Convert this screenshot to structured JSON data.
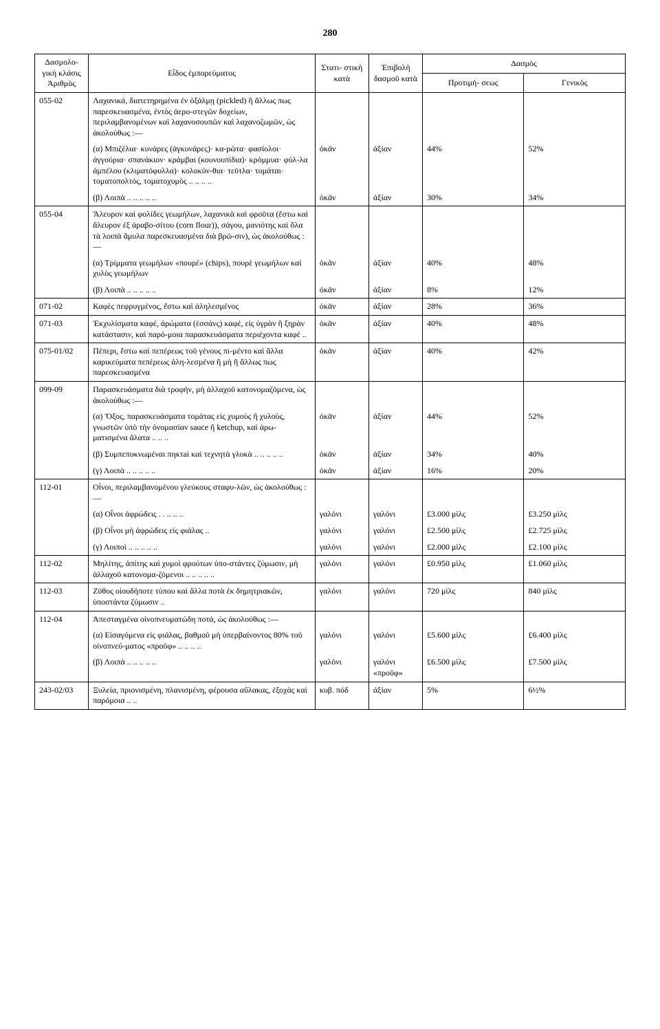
{
  "page_number": "280",
  "headers": {
    "code": "Δασμολο-\nγική\nκλάσις\nἈριθμὸς",
    "desc": "Εἶδος ἐμπορεύματος",
    "stat": "Στατι-\nστικὴ\nκατὰ",
    "epi": "Ἐπιβολὴ\nδασμοῦ\nκατὰ",
    "dasmos": "Δασμὸς",
    "pref": "Προτιμή-\nσεως",
    "gen": "Γενικὸς"
  },
  "rows": [
    {
      "code": "055-02",
      "desc_main": "Λαχανικά, διατετηρημένα ἐν ὀξάλμῃ (pickled) ἢ ἄλλως πως παρεσκευασμένα, ἐντὸς ἀερο-στεγῶν δοχείων, περιλαμβανομένων καὶ λαχανοσουπῶν καὶ λαχανοζωμῶν, ὡς ἀκολούθως :—",
      "sub": [
        {
          "label": "(α) Μπιζέλια· κυνάρες (ἀγκυνάρες)· κα-ρῶτα· φασίολοι· ἀγγούρια· σπανάκιον· κράμβαι (κουνουπίδια)· κρόμμυα· φύλ-λα ἀμπέλου (κλιματόφυλλα)· κολοκύν-θια· τεῦτλα· τομάται· τοματοπολτός, τοματοχυμὸς    ..    ..    ..    ..",
          "stat": "ὀκᾶν",
          "epi": "ἀξίαν",
          "pref": "44%",
          "gen": "52%"
        },
        {
          "label": "(β) Λοιπὰ    ..    ..    ..    ..    ..",
          "stat": "ὀκᾶν",
          "epi": "ἀξίαν",
          "pref": "30%",
          "gen": "34%"
        }
      ]
    },
    {
      "code": "055-04",
      "desc_main": "Ἄλευρον καὶ φολίδες γεωμήλων, λαχανικὰ καὶ φροῦτα (ἔστω καὶ ἄλευρον ἐξ ἀραβο-σίτου (corn flour)), σάγου, μανιότης καὶ ὅλα τὰ λοιπὰ ἄμυλα παρεσκευασμένα διὰ βρῶ-σιν), ὡς ἀκολούθως :—",
      "sub": [
        {
          "label": "(α) Τρίμματα γεωμήλων «πουρέ» (chips), πουρὲ γεωμήλων καὶ χυλὸς γεωμήλων",
          "stat": "ὀκᾶν",
          "epi": "ἀξίαν",
          "pref": "40%",
          "gen": "48%"
        },
        {
          "label": "(β) Λοιπὰ    ..    ..    ..    ..    ..",
          "stat": "ὀκᾶν",
          "epi": "ἀξίαν",
          "pref": "8%",
          "gen": "12%"
        }
      ]
    },
    {
      "code": "071-02",
      "desc_main": "Καφὲς πεφρυγμένος, ἔστω καὶ ἀληλεσμένος",
      "sub": [
        {
          "label": "",
          "stat": "ὀκᾶν",
          "epi": "ἀξίαν",
          "pref": "28%",
          "gen": "36%"
        }
      ],
      "single": true
    },
    {
      "code": "071-03",
      "desc_main": "Ἐκχυλίσματα καφέ, ἀρώματα (ἐσσάνς) καφέ, εἰς ὑγρὰν ἢ ξηρὰν κατάστασιν, καὶ παρό-μοια παρασκευάσματα περιέχοντα καφέ    ..",
      "sub": [
        {
          "label": "",
          "stat": "ὀκᾶν",
          "epi": "ἀξίαν",
          "pref": "40%",
          "gen": "48%"
        }
      ],
      "single": true
    },
    {
      "code": "075-01/02",
      "desc_main": "Πέπερι, ἔστω καὶ πεπέρεως τοῦ γένους πι-μέντο καὶ ἄλλα καρικεύματα πεπέρεως ἀλη-λεσμένα ἢ μὴ ἢ ἄλλως πως παρεσκευασμένα",
      "sub": [
        {
          "label": "",
          "stat": "ὀκᾶν",
          "epi": "ἀξίαν",
          "pref": "40%",
          "gen": "42%"
        }
      ],
      "single": true
    },
    {
      "code": "099-09",
      "desc_main": "Παρασκευάσματα διὰ τροφήν, μὴ ἀλλαχοῦ κατονομαζόμενα, ὡς ἀκολούθως :—",
      "sub": [
        {
          "label": "(α) Ὄξος, παρασκευάσματα τομάτας εἰς χυμοὺς ἢ χυλοὺς, γνωστῶν ὑπὸ τὴν ὀνομασίαν sauce ἢ ketchup, καὶ ἀρω-ματισμένα ἅλατα    ..    ..    ..",
          "stat": "ὀκᾶν",
          "epi": "ἀξίαν",
          "pref": "44%",
          "gen": "52%"
        },
        {
          "label": "(β) Συμπεπυκνωμέναι πηκτaὶ καὶ τεχνητὰ γλυκὰ    ..    ..    ..    ..    ..",
          "stat": "ὀκᾶν",
          "epi": "ἀξίαν",
          "pref": "34%",
          "gen": "40%"
        },
        {
          "label": "(γ) Λοιπὰ    ..    ..    ..    ..    ..",
          "stat": "ὀκᾶν",
          "epi": "ἀξίαν",
          "pref": "16%",
          "gen": "20%"
        }
      ]
    },
    {
      "code": "112-01",
      "desc_main": "Οἶνοι, περιλαμβανομένου γλεύκους σταφυ-λῶν, ὡς ἀκολούθως :—",
      "sub": [
        {
          "label": "(α) Οἶνοι ἀφρώδεις .  .    ..    ..    ..",
          "stat": "γαλόνι",
          "epi": "γαλόνι",
          "pref": "£3.000 μὶλς",
          "gen": "£3.250 μὶλς"
        },
        {
          "label": "(β) Οἶνοι μὴ ἀφρώδεις εἰς φιάλας    ..",
          "stat": "γαλόνι",
          "epi": "γαλόνι",
          "pref": "£2.500 μὶλς",
          "gen": "£2.725 μὶλς"
        },
        {
          "label": "(γ) Λοιποὶ    ..    ..    ..    ..    ..",
          "stat": "γαλόνι",
          "epi": "γαλόνι",
          "pref": "£2.000 μὶλς",
          "gen": "£2.100 μὶλς"
        }
      ]
    },
    {
      "code": "112-02",
      "desc_main": "Μηλίτης, ἀπίτης καὶ χυμοὶ φρούτων ὑπο-στάντες ζύμωσιν, μὴ ἀλλαχοῦ κατονομα-ζόμενοι    ..    ..    ..    ..    ..",
      "sub": [
        {
          "label": "",
          "stat": "γαλόνι",
          "epi": "γαλόνι",
          "pref": "£0.950 μὶλς",
          "gen": "£1.060 μὶλς"
        }
      ],
      "single": true
    },
    {
      "code": "112-03",
      "desc_main": "Ζῦθος οἱουδήποτε τύπου καὶ ἄλλα ποτὰ ἐκ δημητριακῶν, ὑποστάντα ζύμωσιν    ..",
      "sub": [
        {
          "label": "",
          "stat": "γαλόνι",
          "epi": "γαλόνι",
          "pref": "720 μὶλς",
          "gen": "840 μὶλς"
        }
      ],
      "single": true
    },
    {
      "code": "112-04",
      "desc_main": "Ἀπεσταγμένα οἰνοπνευματώδη ποτά, ὡς ἀκολούθως :—",
      "sub": [
        {
          "label": "(α) Εἰσαγόμενα εἰς φιάλας, βαθμοῦ μὴ ὑπερβαίνοντος 80% τοῦ οἰνοπνεύ-ματος «προῦφ»    ..    ..    ..    ..",
          "stat": "γαλόνι",
          "epi": "γαλόνι",
          "pref": "£5.600 μὶλς",
          "gen": "£6.400 μὶλς"
        },
        {
          "label": "(β) Λοιπὰ    ..    ..    ..    ..    ..",
          "stat": "γαλόνι",
          "epi": "γαλόνι\n«προῦφ»",
          "pref": "£6.500 μὶλς",
          "gen": "£7.500 μὶλς"
        }
      ]
    },
    {
      "code": "243-02/03",
      "desc_main": "Ξυλεία, πριονισμένη, πλανισμένη, φέρουσα αὔλακας, ἐξοχὰς καὶ παρόμοια    ..    ..",
      "sub": [
        {
          "label": "",
          "stat": "κυβ. πόδ",
          "epi": "ἀξίαν",
          "pref": "5%",
          "gen": "6½%"
        }
      ],
      "single": true
    }
  ]
}
